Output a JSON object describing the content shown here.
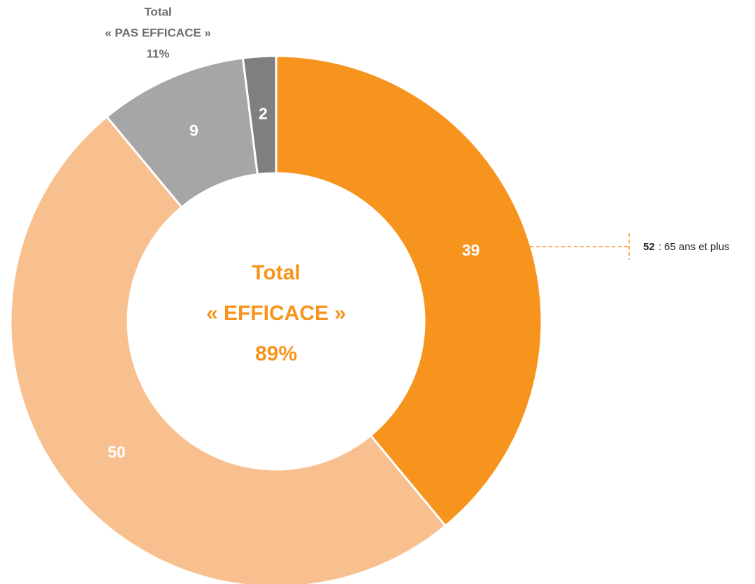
{
  "chart_data": {
    "type": "donut",
    "categories": [
      null,
      null,
      null,
      null
    ],
    "values": [
      39,
      50,
      9,
      2
    ],
    "colors": [
      "#F7941D",
      "#F9C08F",
      "#A6A6A6",
      "#7F7F7F"
    ],
    "center_text": [
      "Total",
      "« EFFICACE »",
      "89%"
    ],
    "top_annotation": [
      "Total",
      "« PAS EFFICACE »",
      "11%"
    ],
    "callout": {
      "value": "52",
      "text": ": 65 ans et plus"
    }
  }
}
